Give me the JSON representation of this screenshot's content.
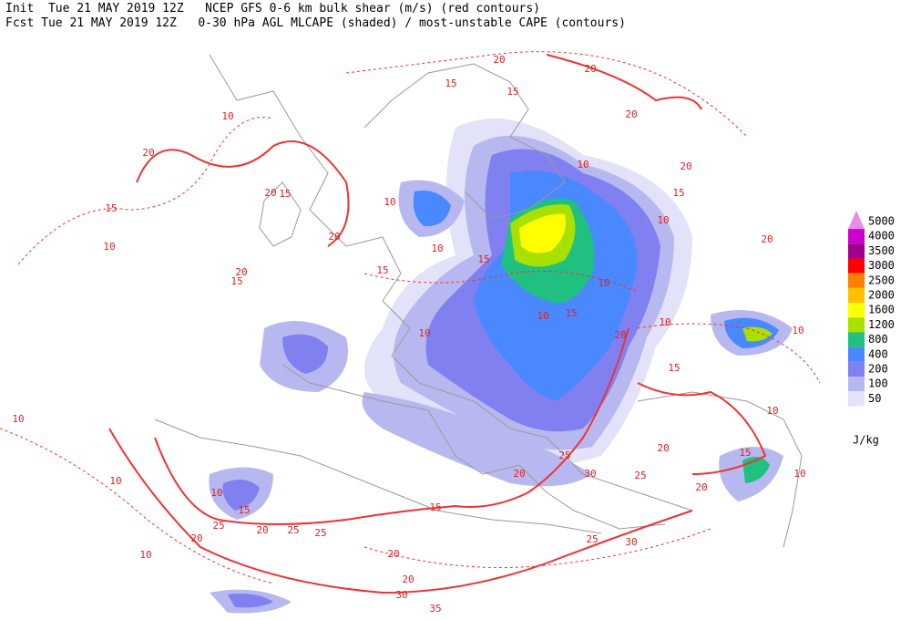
{
  "header": {
    "line1": "Init  Tue 21 MAY 2019 12Z   NCEP GFS 0-6 km bulk shear (m/s) (red contours)",
    "line2": "Fcst Tue 21 MAY 2019 12Z   0-30 hPa AGL MLCAPE (shaded) / most-unstable CAPE (contours)"
  },
  "legend": {
    "unit": "J/kg",
    "levels": [
      5000,
      4000,
      3500,
      3000,
      2500,
      2000,
      1600,
      1200,
      800,
      400,
      200,
      100,
      50
    ],
    "colors": [
      "#e88ce8",
      "#cc00cc",
      "#a0008c",
      "#ff0000",
      "#ff8000",
      "#ffc000",
      "#ffff00",
      "#a8e000",
      "#20c080",
      "#4a88ff",
      "#8080f0",
      "#b8b8f0",
      "#e2e2f8"
    ]
  },
  "contour_labels": [
    20,
    20,
    15,
    15,
    20,
    10,
    20,
    10,
    20,
    15,
    15,
    20,
    15,
    10,
    10,
    20,
    10,
    10,
    15,
    20,
    15,
    20,
    10,
    15,
    15,
    10,
    10,
    10,
    20,
    10,
    15,
    10,
    20,
    10,
    15,
    10,
    25,
    30,
    25,
    20,
    20,
    10,
    10,
    15,
    20,
    25,
    25,
    25,
    20,
    15,
    20,
    20,
    30,
    35,
    25,
    30,
    10
  ]
}
